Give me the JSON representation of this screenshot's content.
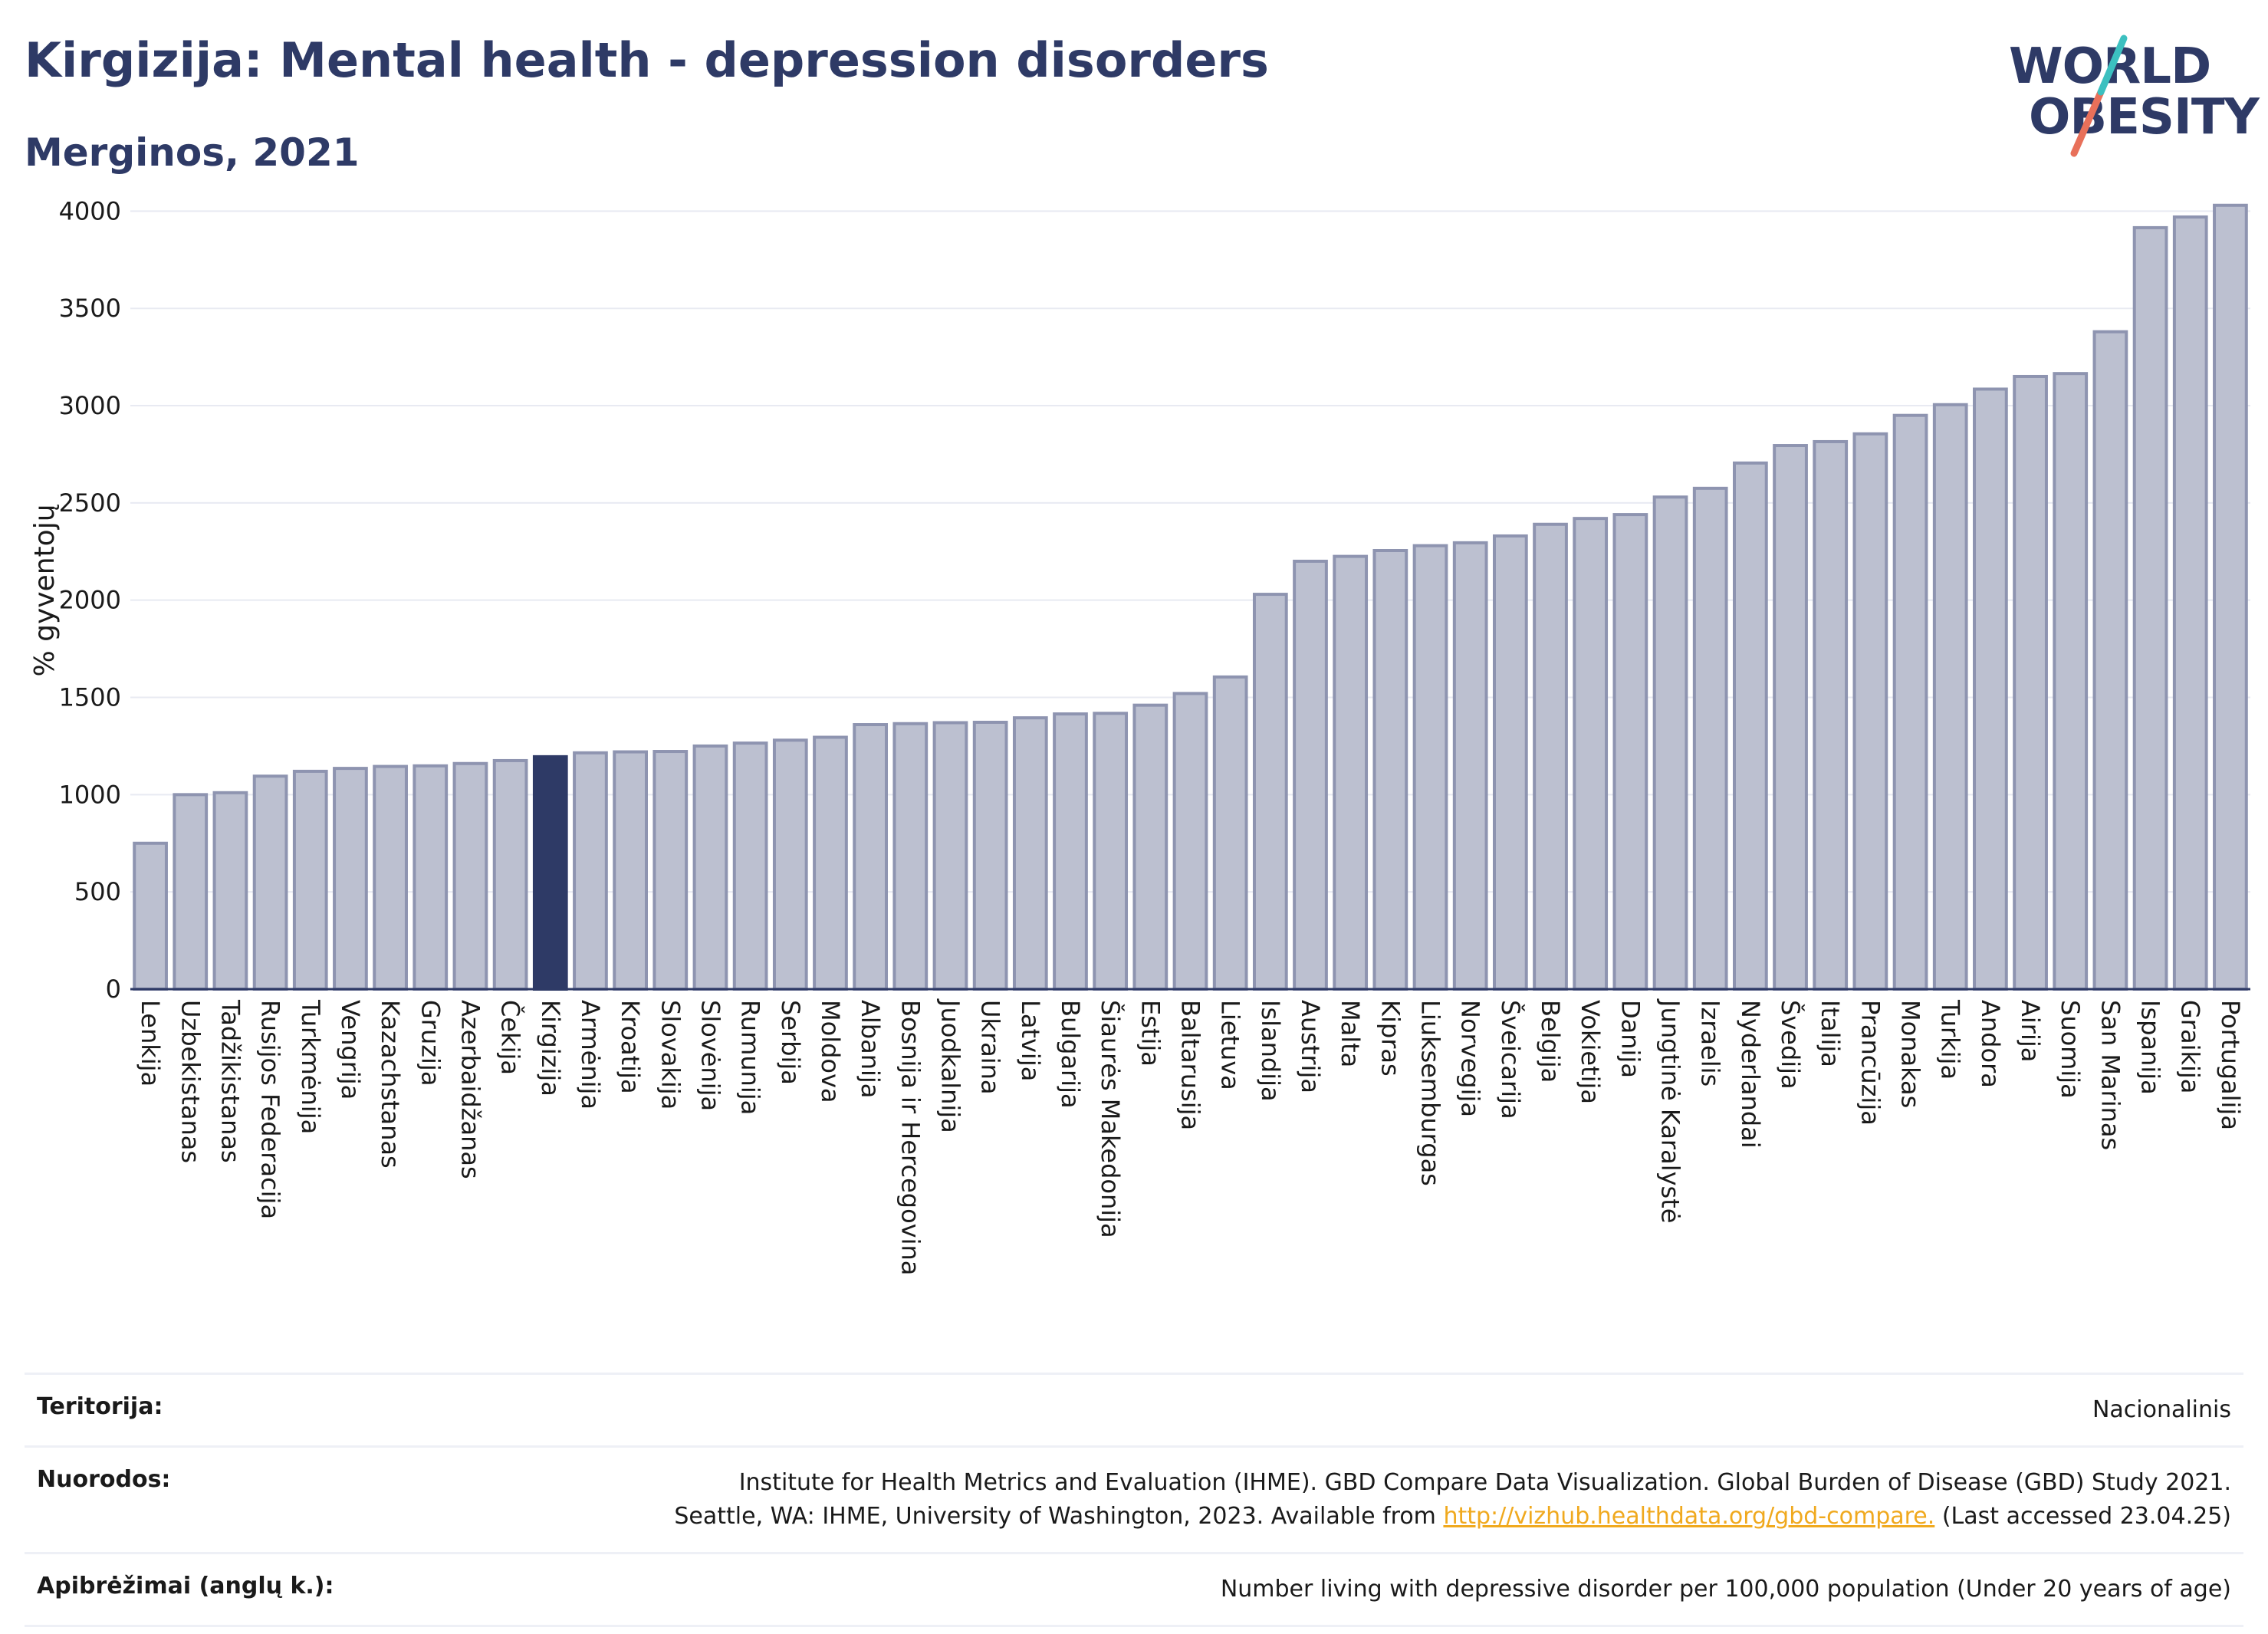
{
  "header": {
    "title": "Kirgizija: Mental health - depression disorders",
    "subtitle": "Merginos, 2021"
  },
  "logo": {
    "line1": "WORLD",
    "line2": "OBESITY",
    "accent_colors": [
      "#3cc0c0",
      "#e8705a"
    ]
  },
  "colors": {
    "bar": "#bcc0d0",
    "bar_border": "#8e94b0",
    "highlight": "#2e3a66",
    "grid": "#e8eaf2"
  },
  "chart_data": {
    "type": "bar",
    "ylabel": "% gyventojų",
    "ylim": [
      0,
      4100
    ],
    "yticks": [
      0,
      500,
      1000,
      1500,
      2000,
      2500,
      3000,
      3500,
      4000
    ],
    "grid": true,
    "highlight_category": "Kirgizija",
    "categories": [
      "Lenkija",
      "Uzbekistanas",
      "Tadžikistanas",
      "Rusijos Federacija",
      "Turkmėnija",
      "Vengrija",
      "Kazachstanas",
      "Gruzija",
      "Azerbaidžanas",
      "Čekija",
      "Kirgizija",
      "Armėnija",
      "Kroatija",
      "Slovakija",
      "Slovėnija",
      "Rumunija",
      "Serbija",
      "Moldova",
      "Albanija",
      "Bosnija ir Hercegovina",
      "Juodkalnija",
      "Ukraina",
      "Latvija",
      "Bulgarija",
      "Šiaurės Makedonija",
      "Estija",
      "Baltarusija",
      "Lietuva",
      "Islandija",
      "Austrija",
      "Malta",
      "Kipras",
      "Liuksemburgas",
      "Norvegija",
      "Šveicarija",
      "Belgija",
      "Vokietija",
      "Danija",
      "Jungtinė Karalystė",
      "Izraelis",
      "Nyderlandai",
      "Švedija",
      "Italija",
      "Prancūzija",
      "Monakas",
      "Turkija",
      "Andora",
      "Airija",
      "Suomija",
      "San Marinas",
      "Ispanija",
      "Graikija",
      "Portugalija"
    ],
    "values": [
      750,
      1000,
      1010,
      1095,
      1120,
      1135,
      1145,
      1148,
      1160,
      1175,
      1195,
      1215,
      1220,
      1222,
      1250,
      1265,
      1280,
      1295,
      1360,
      1365,
      1370,
      1372,
      1395,
      1415,
      1418,
      1460,
      1520,
      1605,
      2030,
      2200,
      2225,
      2255,
      2280,
      2295,
      2330,
      2390,
      2420,
      2440,
      2530,
      2575,
      2705,
      2795,
      2815,
      2855,
      2950,
      3005,
      3085,
      3150,
      3165,
      3380,
      3915,
      3970,
      4030
    ]
  },
  "footer": {
    "rows": [
      {
        "label": "Teritorija:",
        "value_lines": [
          "Nacionalinis"
        ]
      },
      {
        "label": "Nuorodos:",
        "value_lines": [
          "Institute for Health Metrics and Evaluation (IHME). GBD Compare Data Visualization. Global Burden of Disease (GBD) Study 2021."
        ],
        "line2_prefix": "Seattle, WA: IHME, University of Washington, 2023. Available from ",
        "line2_link": "http://vizhub.healthdata.org/gbd-compare.",
        "line2_suffix": " (Last accessed 23.04.25)"
      },
      {
        "label": "Apibrėžimai (anglų k.):",
        "value_lines": [
          "Number living with depressive disorder per 100,000 population (Under 20 years of age)"
        ]
      }
    ]
  }
}
